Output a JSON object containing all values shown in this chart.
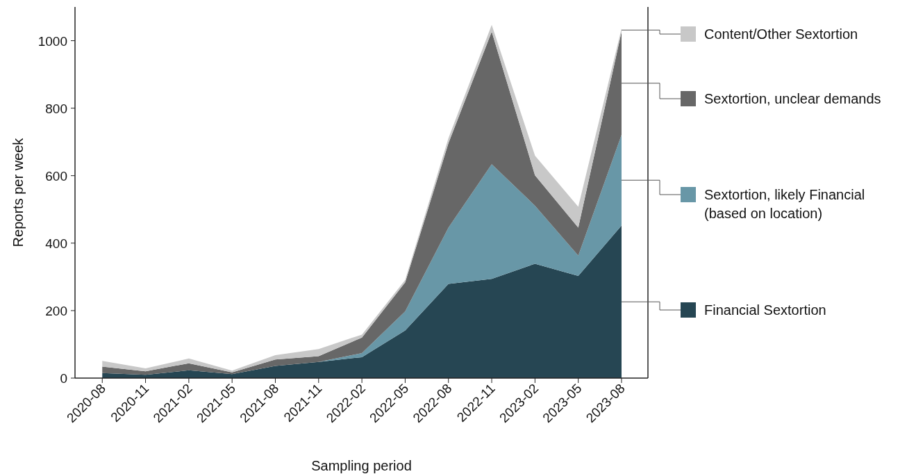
{
  "chart_data": {
    "type": "area",
    "stacked": true,
    "xlabel": "Sampling period",
    "ylabel": "Reports per week",
    "categories": [
      "2020-08",
      "2020-11",
      "2021-02",
      "2021-05",
      "2021-08",
      "2021-11",
      "2022-02",
      "2022-05",
      "2022-08",
      "2022-11",
      "2023-02",
      "2023-05",
      "2023-08"
    ],
    "series": [
      {
        "name": "Financial Sextortion",
        "color": "#264653",
        "values": [
          15,
          10,
          23,
          12,
          36,
          48,
          62,
          141,
          279,
          294,
          339,
          303,
          452
        ]
      },
      {
        "name": "Sextortion, likely Financial (based on location)",
        "color": "#6897a7",
        "values": [
          0,
          0,
          0,
          0,
          0,
          0,
          12,
          57,
          167,
          340,
          172,
          60,
          269
        ]
      },
      {
        "name": "Sextortion, unclear demands",
        "color": "#676767",
        "values": [
          19,
          10,
          21,
          5,
          19,
          17,
          46,
          86,
          250,
          393,
          90,
          83,
          306
        ]
      },
      {
        "name": "Content/Other Sextortion",
        "color": "#c8c8c8",
        "values": [
          17,
          9,
          14,
          5,
          13,
          21,
          9,
          7,
          15,
          20,
          58,
          62,
          9
        ]
      }
    ],
    "ylim": [
      0,
      1100
    ],
    "yticks": [
      0,
      200,
      400,
      600,
      800,
      1000
    ],
    "legend": "right"
  }
}
